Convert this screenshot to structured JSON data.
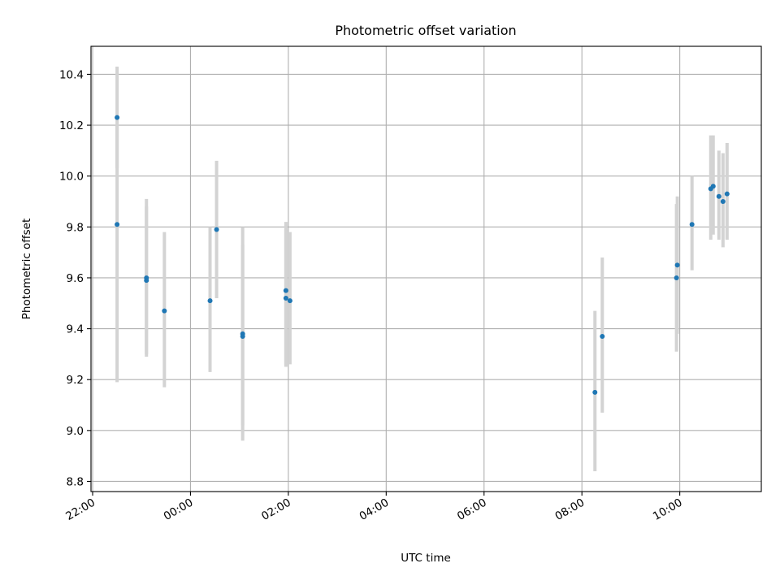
{
  "chart_data": {
    "type": "scatter",
    "title": "Photometric offset variation",
    "xlabel": "UTC time",
    "ylabel": "Photometric offset",
    "x_axis_kind": "time",
    "x_base_date": "day1",
    "xlim": [
      "day1 21:58",
      "day2 11:40"
    ],
    "ylim": [
      8.76,
      10.51
    ],
    "xticks": [
      {
        "t": "day1 22:00",
        "label": "22:00"
      },
      {
        "t": "day2 00:00",
        "label": "00:00"
      },
      {
        "t": "day2 02:00",
        "label": "02:00"
      },
      {
        "t": "day2 04:00",
        "label": "04:00"
      },
      {
        "t": "day2 06:00",
        "label": "06:00"
      },
      {
        "t": "day2 08:00",
        "label": "08:00"
      },
      {
        "t": "day2 10:00",
        "label": "10:00"
      }
    ],
    "yticks": [
      8.8,
      9.0,
      9.2,
      9.4,
      9.6,
      9.8,
      10.0,
      10.2,
      10.4
    ],
    "ytick_labels": [
      "8.8",
      "9.0",
      "9.2",
      "9.4",
      "9.6",
      "9.8",
      "10.0",
      "10.2",
      "10.4"
    ],
    "grid": true,
    "marker_color": "#1f77b4",
    "errorbar_color": "#d3d3d3",
    "points": [
      {
        "t": "day1 22:30",
        "y": 10.23,
        "lo": 10.03,
        "hi": 10.43
      },
      {
        "t": "day1 22:30",
        "y": 9.81,
        "lo": 9.19,
        "hi": 10.2
      },
      {
        "t": "day1 23:06",
        "y": 9.6,
        "lo": 9.29,
        "hi": 9.91
      },
      {
        "t": "day1 23:06",
        "y": 9.59,
        "lo": 9.3,
        "hi": 9.88
      },
      {
        "t": "day1 23:28",
        "y": 9.47,
        "lo": 9.17,
        "hi": 9.78
      },
      {
        "t": "day2 00:24",
        "y": 9.51,
        "lo": 9.23,
        "hi": 9.8
      },
      {
        "t": "day2 00:32",
        "y": 9.79,
        "lo": 9.52,
        "hi": 10.06
      },
      {
        "t": "day2 01:04",
        "y": 9.38,
        "lo": 9.02,
        "hi": 9.73
      },
      {
        "t": "day2 01:04",
        "y": 9.37,
        "lo": 8.96,
        "hi": 9.8
      },
      {
        "t": "day2 01:57",
        "y": 9.55,
        "lo": 9.26,
        "hi": 9.82
      },
      {
        "t": "day2 01:57",
        "y": 9.52,
        "lo": 9.25,
        "hi": 9.79
      },
      {
        "t": "day2 02:02",
        "y": 9.51,
        "lo": 9.26,
        "hi": 9.78
      },
      {
        "t": "day2 08:16",
        "y": 9.15,
        "lo": 8.84,
        "hi": 9.47
      },
      {
        "t": "day2 08:25",
        "y": 9.37,
        "lo": 9.07,
        "hi": 9.68
      },
      {
        "t": "day2 09:56",
        "y": 9.6,
        "lo": 9.31,
        "hi": 9.89
      },
      {
        "t": "day2 09:57",
        "y": 9.65,
        "lo": 9.38,
        "hi": 9.92
      },
      {
        "t": "day2 10:15",
        "y": 9.81,
        "lo": 9.63,
        "hi": 10.0
      },
      {
        "t": "day2 10:38",
        "y": 9.95,
        "lo": 9.75,
        "hi": 10.16
      },
      {
        "t": "day2 10:41",
        "y": 9.96,
        "lo": 9.77,
        "hi": 10.16
      },
      {
        "t": "day2 10:48",
        "y": 9.92,
        "lo": 9.75,
        "hi": 10.1
      },
      {
        "t": "day2 10:53",
        "y": 9.9,
        "lo": 9.72,
        "hi": 10.09
      },
      {
        "t": "day2 10:58",
        "y": 9.93,
        "lo": 9.75,
        "hi": 10.13
      }
    ]
  }
}
